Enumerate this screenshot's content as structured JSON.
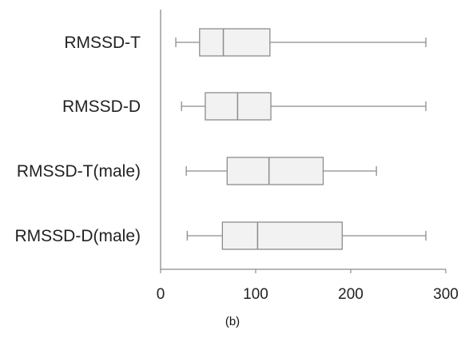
{
  "caption": "(b)",
  "chart_data": {
    "type": "boxplot",
    "orientation": "horizontal",
    "title": "",
    "xlabel": "",
    "ylabel": "",
    "xlim": [
      0,
      300
    ],
    "xticks": [
      0,
      100,
      200,
      300
    ],
    "grid": false,
    "box_fill": "#f2f2f2",
    "stroke_color": "#8c8c8c",
    "categories": [
      "RMSSD-T",
      "RMSSD-D",
      "RMSSD-T(male)",
      "RMSSD-D(male)"
    ],
    "boxes": [
      {
        "label": "RMSSD-T",
        "min": 16,
        "q1": 41,
        "median": 66,
        "q3": 115,
        "max": 279
      },
      {
        "label": "RMSSD-D",
        "min": 22,
        "q1": 47,
        "median": 81,
        "q3": 116,
        "max": 279
      },
      {
        "label": "RMSSD-T(male)",
        "min": 27,
        "q1": 70,
        "median": 114,
        "q3": 171,
        "max": 227
      },
      {
        "label": "RMSSD-D(male)",
        "min": 28,
        "q1": 65,
        "median": 102,
        "q3": 191,
        "max": 279
      }
    ]
  }
}
